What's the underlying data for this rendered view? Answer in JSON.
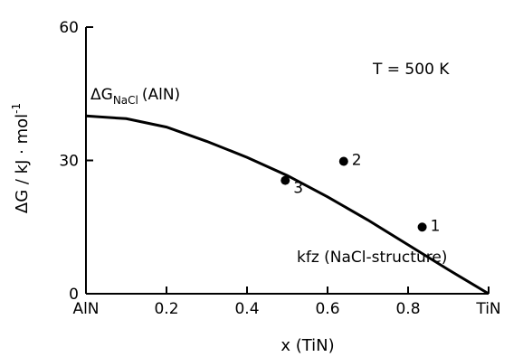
{
  "chart_data": {
    "type": "line",
    "xlabel": "x (TiN)",
    "ylabel_main": "ΔG / kJ · mol",
    "ylabel_sup": "-1",
    "xlim": [
      0,
      1.0
    ],
    "ylim": [
      0,
      60
    ],
    "x_ticks": [
      {
        "value": 0.0,
        "label": "AlN"
      },
      {
        "value": 0.2,
        "label": "0.2"
      },
      {
        "value": 0.4,
        "label": "0.4"
      },
      {
        "value": 0.6,
        "label": "0.6"
      },
      {
        "value": 0.8,
        "label": "0.8"
      },
      {
        "value": 1.0,
        "label": "TiN"
      }
    ],
    "y_ticks": [
      {
        "value": 0,
        "label": "0"
      },
      {
        "value": 30,
        "label": "30"
      },
      {
        "value": 60,
        "label": "60"
      }
    ],
    "series": [
      {
        "x": [
          0.0,
          0.1,
          0.2,
          0.3,
          0.4,
          0.5,
          0.6,
          0.7,
          0.8,
          0.9,
          1.0
        ],
        "y": [
          40.0,
          39.4,
          37.5,
          34.3,
          30.7,
          26.6,
          21.8,
          16.6,
          11.0,
          5.4,
          0.0
        ]
      }
    ],
    "points": [
      {
        "label": "1",
        "x": 0.835,
        "y": 15.0
      },
      {
        "label": "2",
        "x": 0.64,
        "y": 29.8
      },
      {
        "label": "3",
        "x": 0.495,
        "y": 25.5
      }
    ],
    "annotations": {
      "temperature": "T = 500 K",
      "curve_label_main": "ΔG",
      "curve_label_sub": "NaCl",
      "curve_label_tail": "(AlN)",
      "region_label": "kfz (NaCl-structure)"
    }
  }
}
